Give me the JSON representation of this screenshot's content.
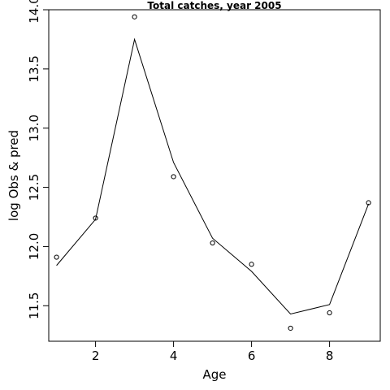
{
  "chart_data": {
    "type": "line",
    "title": "Total catches, year 2005",
    "xlabel": "Age",
    "ylabel": "log Obs & pred",
    "xlim": [
      0.8,
      9.3
    ],
    "ylim": [
      11.2,
      14.0
    ],
    "x_ticks": [
      2,
      4,
      6,
      8
    ],
    "x_tick_labels": [
      "2",
      "4",
      "6",
      "8"
    ],
    "y_ticks": [
      11.5,
      12.0,
      12.5,
      13.0,
      13.5,
      14.0
    ],
    "y_tick_labels": [
      "11.5",
      "12.0",
      "12.5",
      "13.0",
      "13.5",
      "14.0"
    ],
    "grid": false,
    "legend": "none",
    "series": [
      {
        "style": "points",
        "marker": "open-circle",
        "x": [
          1,
          2,
          3,
          4,
          5,
          6,
          7,
          8,
          9
        ],
        "y": [
          11.91,
          12.24,
          13.94,
          12.59,
          12.03,
          11.85,
          11.31,
          11.44,
          12.37
        ]
      },
      {
        "style": "line",
        "x": [
          1,
          2,
          3,
          4,
          5,
          6,
          7,
          8,
          9
        ],
        "y": [
          11.84,
          12.23,
          13.75,
          12.71,
          12.07,
          11.79,
          11.43,
          11.51,
          12.36
        ]
      }
    ],
    "colors": {
      "line": "#000000",
      "marker": "#000000",
      "axis": "#000000",
      "background": "#ffffff"
    }
  }
}
